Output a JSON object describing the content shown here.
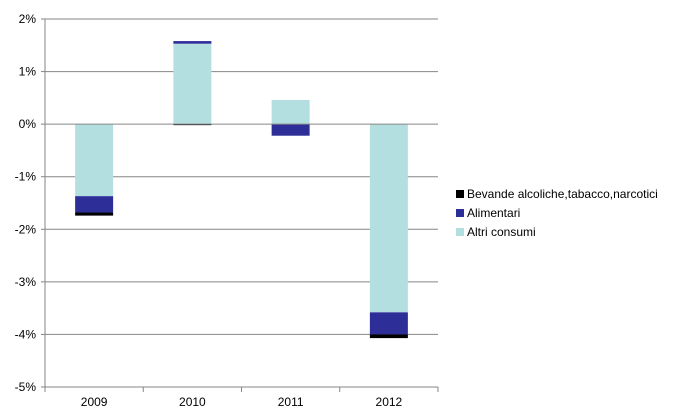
{
  "chart_data": {
    "type": "bar",
    "stacked": true,
    "categories": [
      "2009",
      "2010",
      "2011",
      "2012"
    ],
    "series": [
      {
        "name": "Altri consumi",
        "color": "#b4dfe0",
        "values": [
          -1.37,
          1.53,
          0.46,
          -3.58
        ]
      },
      {
        "name": "Alimentari",
        "color": "#2e2e99",
        "values": [
          -0.31,
          0.05,
          -0.22,
          -0.42
        ]
      },
      {
        "name": "Bevande alcoliche,tabacco,narcotici",
        "color": "#000000",
        "values": [
          -0.06,
          -0.01,
          0.0,
          -0.07
        ]
      }
    ],
    "yticks": [
      "2%",
      "1%",
      "0%",
      "-1%",
      "-2%",
      "-3%",
      "-4%",
      "-5%"
    ],
    "ylim": [
      -5,
      2
    ],
    "grid": true,
    "legend_position": "right",
    "legend_order": [
      "Bevande alcoliche,tabacco,narcotici",
      "Alimentari",
      "Altri consumi"
    ]
  }
}
